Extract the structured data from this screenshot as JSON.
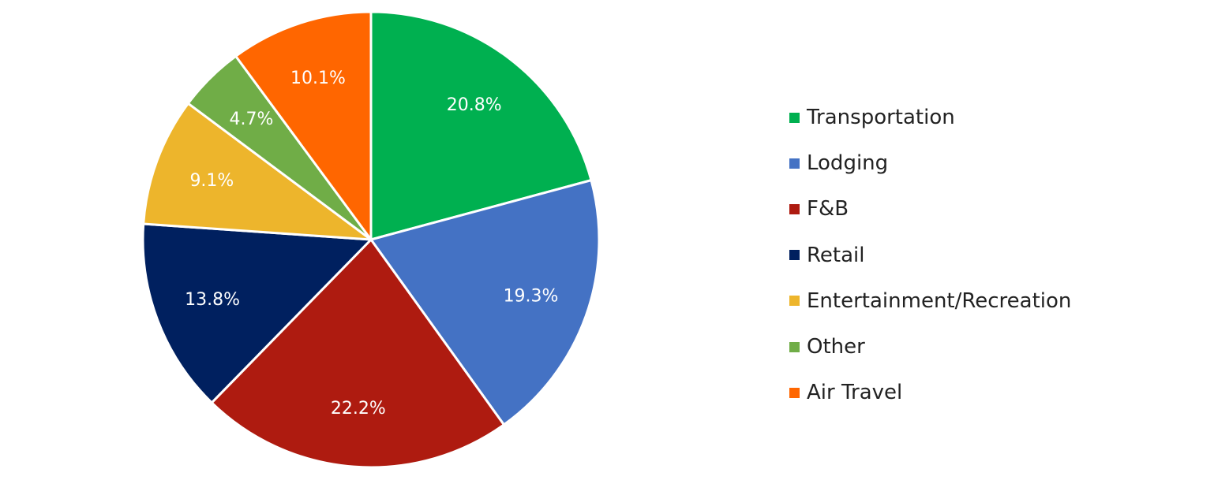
{
  "chart_data": {
    "type": "pie",
    "start_angle_deg": 0,
    "direction": "clockwise",
    "title": "",
    "legend_position": "right",
    "slices": [
      {
        "label": "Transportation",
        "value": 20.8,
        "value_label": "20.8%",
        "color": "#00B050"
      },
      {
        "label": "Lodging",
        "value": 19.3,
        "value_label": "19.3%",
        "color": "#4472C4"
      },
      {
        "label": "F&B",
        "value": 22.2,
        "value_label": "22.2%",
        "color": "#AE1B10"
      },
      {
        "label": "Retail",
        "value": 13.8,
        "value_label": "13.8%",
        "color": "#00205F"
      },
      {
        "label": "Entertainment/Recreation",
        "value": 9.1,
        "value_label": "9.1%",
        "color": "#EDB52C"
      },
      {
        "label": "Other",
        "value": 4.7,
        "value_label": "4.7%",
        "color": "#70AD47"
      },
      {
        "label": "Air Travel",
        "value": 10.1,
        "value_label": "10.1%",
        "color": "#FF6600"
      }
    ]
  }
}
